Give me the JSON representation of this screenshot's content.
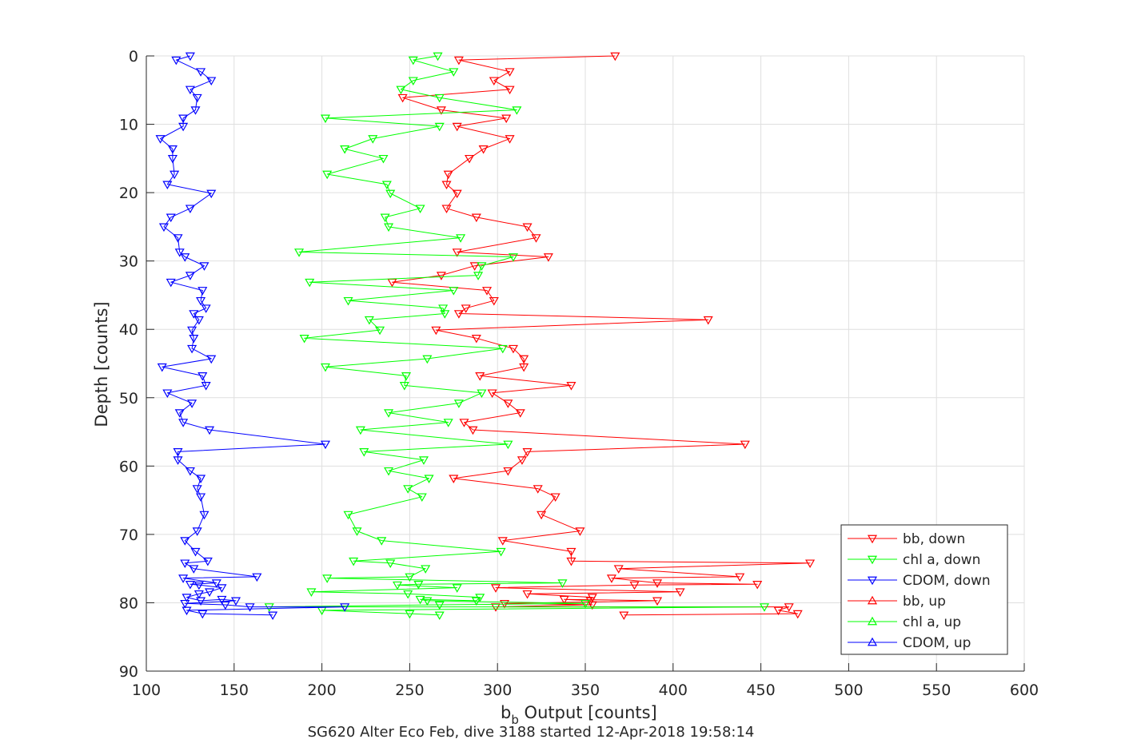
{
  "caption": "SG620 Alter Eco Feb, dive 3188 started 12-Apr-2018 19:58:14",
  "colors": {
    "red": "#ff0000",
    "green": "#00ff00",
    "blue": "#0000ff"
  },
  "chart_data": {
    "type": "line",
    "title": "",
    "xlabel": {
      "main": "b",
      "sub": "b",
      "rest": " Output [counts]"
    },
    "ylabel": "Depth [counts]",
    "xlim": [
      100,
      600
    ],
    "ylim": [
      0,
      90
    ],
    "y_reversed": true,
    "grid": true,
    "legend_position": "bottom-right",
    "x_ticks": [
      "100",
      "150",
      "200",
      "250",
      "300",
      "350",
      "400",
      "450",
      "500",
      "550",
      "600"
    ],
    "y_ticks": [
      "0",
      "10",
      "20",
      "30",
      "40",
      "50",
      "60",
      "70",
      "80",
      "90"
    ],
    "series": [
      {
        "name": "bb, down",
        "color": "#ff0000",
        "marker": "down",
        "dir": "down",
        "points": [
          [
            367,
            0
          ],
          [
            278,
            0.6
          ],
          [
            307,
            2.3
          ],
          [
            298,
            3.6
          ],
          [
            307,
            4.9
          ],
          [
            246,
            6.1
          ],
          [
            268,
            7.9
          ],
          [
            305,
            9.1
          ],
          [
            277,
            10.3
          ],
          [
            307,
            12.1
          ],
          [
            292,
            13.6
          ],
          [
            284,
            15
          ],
          [
            272,
            17.3
          ],
          [
            271,
            18.8
          ],
          [
            277,
            20.1
          ],
          [
            271,
            22.3
          ],
          [
            288,
            23.6
          ],
          [
            317,
            25
          ],
          [
            322,
            26.6
          ],
          [
            277,
            28.7
          ],
          [
            329,
            29.4
          ],
          [
            287,
            30.7
          ],
          [
            268,
            32.1
          ],
          [
            240,
            33.1
          ],
          [
            294,
            34.3
          ],
          [
            298,
            35.8
          ],
          [
            282,
            36.9
          ],
          [
            278,
            37.7
          ],
          [
            420,
            38.6
          ],
          [
            265,
            40.1
          ],
          [
            288,
            41.3
          ],
          [
            309,
            42.8
          ],
          [
            315,
            44.3
          ],
          [
            315,
            45.5
          ],
          [
            290,
            46.8
          ],
          [
            342,
            48.2
          ],
          [
            297,
            49.3
          ],
          [
            306,
            50.8
          ],
          [
            313,
            52.2
          ],
          [
            281,
            53.6
          ],
          [
            286,
            54.7
          ],
          [
            441,
            56.8
          ],
          [
            317,
            57.9
          ],
          [
            314,
            59.1
          ],
          [
            306,
            60.7
          ],
          [
            275,
            61.8
          ],
          [
            323,
            63.3
          ],
          [
            333,
            64.5
          ],
          [
            325,
            67.1
          ],
          [
            347,
            69.5
          ],
          [
            303,
            70.9
          ],
          [
            342,
            72.5
          ],
          [
            342,
            73.9
          ],
          [
            478,
            74.2
          ],
          [
            369,
            75
          ],
          [
            438,
            76.2
          ],
          [
            365,
            76.4
          ],
          [
            391,
            77.1
          ],
          [
            448,
            77.3
          ],
          [
            378,
            77.4
          ],
          [
            299,
            77.8
          ],
          [
            404,
            78.4
          ],
          [
            317,
            78.7
          ],
          [
            354,
            79.2
          ],
          [
            353,
            79.7
          ],
          [
            338,
            79.5
          ],
          [
            391,
            79.7
          ],
          [
            304,
            80.1
          ],
          [
            354,
            80.3
          ],
          [
            299,
            80.6
          ],
          [
            466,
            80.6
          ],
          [
            460,
            81.1
          ],
          [
            471,
            81.6
          ],
          [
            372,
            81.8
          ]
        ]
      },
      {
        "name": "chl a, down",
        "color": "#00ff00",
        "marker": "down",
        "dir": "down",
        "points": [
          [
            266,
            0
          ],
          [
            252,
            0.6
          ],
          [
            275,
            2.3
          ],
          [
            252,
            3.6
          ],
          [
            245,
            4.9
          ],
          [
            267,
            6.1
          ],
          [
            311,
            7.9
          ],
          [
            202,
            9.1
          ],
          [
            267,
            10.3
          ],
          [
            229,
            12.1
          ],
          [
            213,
            13.6
          ],
          [
            235,
            15
          ],
          [
            203,
            17.3
          ],
          [
            237,
            18.8
          ],
          [
            239,
            20.1
          ],
          [
            256,
            22.3
          ],
          [
            236,
            23.6
          ],
          [
            238,
            25
          ],
          [
            279,
            26.6
          ],
          [
            187,
            28.7
          ],
          [
            309,
            29.4
          ],
          [
            291,
            30.7
          ],
          [
            289,
            32.1
          ],
          [
            193,
            33.1
          ],
          [
            275,
            34.3
          ],
          [
            215,
            35.8
          ],
          [
            269,
            36.9
          ],
          [
            270,
            37.7
          ],
          [
            227,
            38.6
          ],
          [
            233,
            40.1
          ],
          [
            190,
            41.3
          ],
          [
            303,
            42.8
          ],
          [
            260,
            44.3
          ],
          [
            202,
            45.5
          ],
          [
            248,
            46.8
          ],
          [
            247,
            48.2
          ],
          [
            291,
            49.3
          ],
          [
            278,
            50.8
          ],
          [
            238,
            52.2
          ],
          [
            272,
            53.6
          ],
          [
            222,
            54.7
          ],
          [
            306,
            56.8
          ],
          [
            224,
            57.9
          ],
          [
            258,
            59.1
          ],
          [
            238,
            60.7
          ],
          [
            261,
            61.8
          ],
          [
            249,
            63.3
          ],
          [
            257,
            64.5
          ],
          [
            215,
            67.1
          ],
          [
            220,
            69.5
          ],
          [
            234,
            70.9
          ],
          [
            302,
            72.5
          ],
          [
            218,
            73.9
          ],
          [
            239,
            74.2
          ],
          [
            259,
            75
          ],
          [
            250,
            76.2
          ],
          [
            203,
            76.4
          ],
          [
            337,
            77.1
          ],
          [
            255,
            77.3
          ],
          [
            243,
            77.4
          ],
          [
            277,
            77.8
          ],
          [
            194,
            78.4
          ],
          [
            249,
            78.7
          ],
          [
            290,
            79.2
          ],
          [
            288,
            79.7
          ],
          [
            256,
            79.5
          ],
          [
            260,
            79.7
          ],
          [
            350,
            80.1
          ],
          [
            267,
            80.3
          ],
          [
            170,
            80.6
          ],
          [
            452,
            80.6
          ],
          [
            200,
            81.1
          ],
          [
            250,
            81.6
          ],
          [
            267,
            81.8
          ]
        ]
      },
      {
        "name": "CDOM, down",
        "color": "#0000ff",
        "marker": "down",
        "dir": "down",
        "points": [
          [
            125,
            0
          ],
          [
            117,
            0.6
          ],
          [
            131,
            2.3
          ],
          [
            137,
            3.6
          ],
          [
            125,
            4.9
          ],
          [
            129,
            6.1
          ],
          [
            128,
            7.9
          ],
          [
            121,
            9.1
          ],
          [
            121,
            10.3
          ],
          [
            108,
            12.1
          ],
          [
            115,
            13.6
          ],
          [
            115,
            15
          ],
          [
            116,
            17.3
          ],
          [
            112,
            18.8
          ],
          [
            137,
            20.1
          ],
          [
            125,
            22.3
          ],
          [
            114,
            23.6
          ],
          [
            110,
            25
          ],
          [
            118,
            26.6
          ],
          [
            119,
            28.7
          ],
          [
            122,
            29.4
          ],
          [
            133,
            30.7
          ],
          [
            125,
            32.1
          ],
          [
            114,
            33.1
          ],
          [
            132,
            34.3
          ],
          [
            131,
            35.8
          ],
          [
            134,
            36.9
          ],
          [
            127,
            37.7
          ],
          [
            130,
            38.6
          ],
          [
            126,
            40.1
          ],
          [
            127,
            41.3
          ],
          [
            126,
            42.8
          ],
          [
            137,
            44.3
          ],
          [
            109,
            45.5
          ],
          [
            132,
            46.8
          ],
          [
            134,
            48.2
          ],
          [
            112,
            49.3
          ],
          [
            126,
            50.8
          ],
          [
            119,
            52.2
          ],
          [
            121,
            53.6
          ],
          [
            136,
            54.7
          ],
          [
            202,
            56.8
          ],
          [
            118,
            57.9
          ],
          [
            118,
            59.1
          ],
          [
            125,
            60.7
          ],
          [
            131,
            61.8
          ],
          [
            129,
            63.3
          ],
          [
            131,
            64.5
          ],
          [
            133,
            67.1
          ],
          [
            129,
            69.5
          ],
          [
            122,
            70.9
          ],
          [
            128,
            72.5
          ],
          [
            135,
            73.9
          ],
          [
            122,
            74.2
          ],
          [
            127,
            75
          ],
          [
            163,
            76.2
          ],
          [
            121,
            76.4
          ],
          [
            140,
            77.1
          ],
          [
            125,
            77.3
          ],
          [
            130,
            77.4
          ],
          [
            143,
            77.8
          ],
          [
            136,
            78.4
          ],
          [
            130,
            78.7
          ],
          [
            123,
            79.2
          ],
          [
            131,
            79.7
          ],
          [
            143,
            79.5
          ],
          [
            151,
            79.7
          ],
          [
            122,
            80.1
          ],
          [
            145,
            80.3
          ],
          [
            159,
            80.6
          ],
          [
            213,
            80.6
          ],
          [
            123,
            81.1
          ],
          [
            132,
            81.6
          ],
          [
            172,
            81.8
          ]
        ]
      },
      {
        "name": "bb, up",
        "color": "#ff0000",
        "marker": "up",
        "dir": "up",
        "points": []
      },
      {
        "name": "chl a, up",
        "color": "#00ff00",
        "marker": "up",
        "dir": "up",
        "points": []
      },
      {
        "name": "CDOM, up",
        "color": "#0000ff",
        "marker": "up",
        "dir": "up",
        "points": []
      }
    ]
  }
}
